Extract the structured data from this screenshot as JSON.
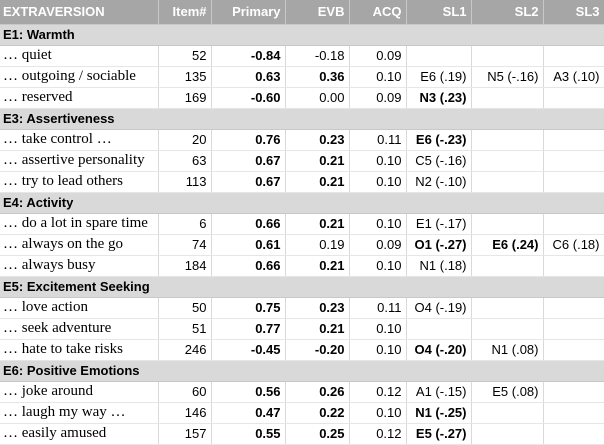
{
  "header": {
    "label": "EXTRAVERSION",
    "item": "Item#",
    "primary": "Primary",
    "evb": "EVB",
    "acq": "ACQ",
    "sl1": "SL1",
    "sl2": "SL2",
    "sl3": "SL3"
  },
  "facets": [
    {
      "title": "E1: Warmth",
      "rows": [
        {
          "text": "… quiet",
          "item": "52",
          "primary": "-0.84",
          "primary_bold": true,
          "evb": "-0.18",
          "evb_bold": false,
          "acq": "0.09",
          "sl1": "",
          "sl1_bold": false,
          "sl2": "",
          "sl2_bold": false,
          "sl3": "",
          "sl3_bold": false
        },
        {
          "text": "… outgoing / sociable",
          "item": "135",
          "primary": "0.63",
          "primary_bold": true,
          "evb": "0.36",
          "evb_bold": true,
          "acq": "0.10",
          "sl1": "E6 (.19)",
          "sl1_bold": false,
          "sl2": "N5 (-.16)",
          "sl2_bold": false,
          "sl3": "A3 (.10)",
          "sl3_bold": false
        },
        {
          "text": "… reserved",
          "item": "169",
          "primary": "-0.60",
          "primary_bold": true,
          "evb": "0.00",
          "evb_bold": false,
          "acq": "0.09",
          "sl1": "N3 (.23)",
          "sl1_bold": true,
          "sl2": "",
          "sl2_bold": false,
          "sl3": "",
          "sl3_bold": false
        }
      ]
    },
    {
      "title": "E3: Assertiveness",
      "rows": [
        {
          "text": "… take control …",
          "item": "20",
          "primary": "0.76",
          "primary_bold": true,
          "evb": "0.23",
          "evb_bold": true,
          "acq": "0.11",
          "sl1": "E6 (-.23)",
          "sl1_bold": true,
          "sl2": "",
          "sl2_bold": false,
          "sl3": "",
          "sl3_bold": false
        },
        {
          "text": "… assertive personality",
          "item": "63",
          "primary": "0.67",
          "primary_bold": true,
          "evb": "0.21",
          "evb_bold": true,
          "acq": "0.10",
          "sl1": "C5 (-.16)",
          "sl1_bold": false,
          "sl2": "",
          "sl2_bold": false,
          "sl3": "",
          "sl3_bold": false
        },
        {
          "text": "… try to lead others",
          "item": "113",
          "primary": "0.67",
          "primary_bold": true,
          "evb": "0.21",
          "evb_bold": true,
          "acq": "0.10",
          "sl1": "N2 (-.10)",
          "sl1_bold": false,
          "sl2": "",
          "sl2_bold": false,
          "sl3": "",
          "sl3_bold": false
        }
      ]
    },
    {
      "title": "E4: Activity",
      "rows": [
        {
          "text": "… do a lot in spare time",
          "item": "6",
          "primary": "0.66",
          "primary_bold": true,
          "evb": "0.21",
          "evb_bold": true,
          "acq": "0.10",
          "sl1": "E1 (-.17)",
          "sl1_bold": false,
          "sl2": "",
          "sl2_bold": false,
          "sl3": "",
          "sl3_bold": false
        },
        {
          "text": "… always on the go",
          "item": "74",
          "primary": "0.61",
          "primary_bold": true,
          "evb": "0.19",
          "evb_bold": false,
          "acq": "0.09",
          "sl1": "O1 (-.27)",
          "sl1_bold": true,
          "sl2": "E6 (.24)",
          "sl2_bold": true,
          "sl3": "C6 (.18)",
          "sl3_bold": false
        },
        {
          "text": "… always busy",
          "item": "184",
          "primary": "0.66",
          "primary_bold": true,
          "evb": "0.21",
          "evb_bold": true,
          "acq": "0.10",
          "sl1": "N1 (.18)",
          "sl1_bold": false,
          "sl2": "",
          "sl2_bold": false,
          "sl3": "",
          "sl3_bold": false
        }
      ]
    },
    {
      "title": "E5: Excitement Seeking",
      "rows": [
        {
          "text": "… love action",
          "item": "50",
          "primary": "0.75",
          "primary_bold": true,
          "evb": "0.23",
          "evb_bold": true,
          "acq": "0.11",
          "sl1": "O4 (-.19)",
          "sl1_bold": false,
          "sl2": "",
          "sl2_bold": false,
          "sl3": "",
          "sl3_bold": false
        },
        {
          "text": "… seek adventure",
          "item": "51",
          "primary": "0.77",
          "primary_bold": true,
          "evb": "0.21",
          "evb_bold": true,
          "acq": "0.10",
          "sl1": "",
          "sl1_bold": false,
          "sl2": "",
          "sl2_bold": false,
          "sl3": "",
          "sl3_bold": false
        },
        {
          "text": "… hate to take risks",
          "item": "246",
          "primary": "-0.45",
          "primary_bold": true,
          "evb": "-0.20",
          "evb_bold": true,
          "acq": "0.10",
          "sl1": "O4 (-.20)",
          "sl1_bold": true,
          "sl2": "N1 (.08)",
          "sl2_bold": false,
          "sl3": "",
          "sl3_bold": false
        }
      ]
    },
    {
      "title": "E6: Positive Emotions",
      "rows": [
        {
          "text": "… joke around",
          "item": "60",
          "primary": "0.56",
          "primary_bold": true,
          "evb": "0.26",
          "evb_bold": true,
          "acq": "0.12",
          "sl1": "A1 (-.15)",
          "sl1_bold": false,
          "sl2": "E5 (.08)",
          "sl2_bold": false,
          "sl3": "",
          "sl3_bold": false
        },
        {
          "text": "… laugh my way …",
          "item": "146",
          "primary": "0.47",
          "primary_bold": true,
          "evb": "0.22",
          "evb_bold": true,
          "acq": "0.10",
          "sl1": "N1 (-.25)",
          "sl1_bold": true,
          "sl2": "",
          "sl2_bold": false,
          "sl3": "",
          "sl3_bold": false
        },
        {
          "text": "… easily amused",
          "item": "157",
          "primary": "0.55",
          "primary_bold": true,
          "evb": "0.25",
          "evb_bold": true,
          "acq": "0.12",
          "sl1": "E5 (-.27)",
          "sl1_bold": true,
          "sl2": "",
          "sl2_bold": false,
          "sl3": "",
          "sl3_bold": false
        }
      ]
    }
  ]
}
